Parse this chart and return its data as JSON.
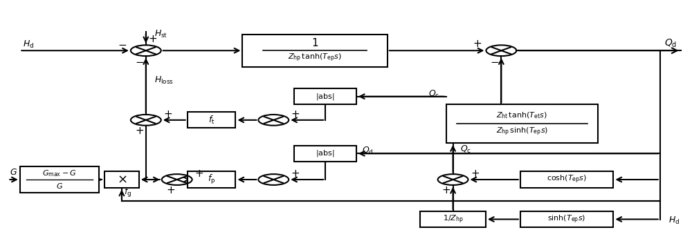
{
  "figsize": [
    10.0,
    3.62
  ],
  "dpi": 100,
  "bg_color": "#ffffff",
  "line_color": "#000000",
  "line_width": 1.5
}
